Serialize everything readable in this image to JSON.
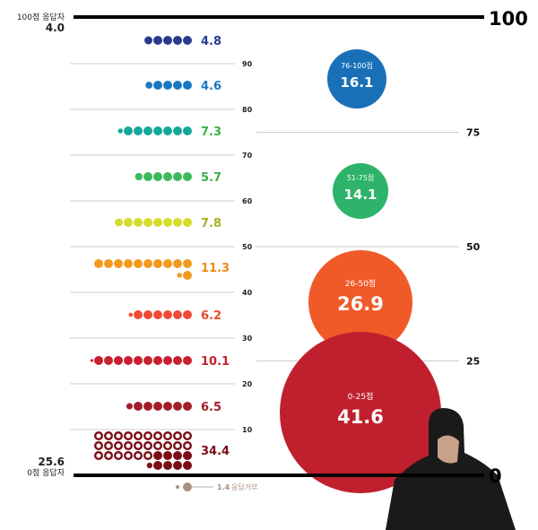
{
  "chart_data": {
    "type": "dot-bubble",
    "top_label": {
      "title": "100점 응답자",
      "value": "4.0"
    },
    "bottom_label": {
      "title": "0점 응답자",
      "value": "25.6"
    },
    "refusal": {
      "value": "1.4",
      "label": "응답거부",
      "color": "#a89080"
    },
    "left_ticks": [
      90,
      80,
      70,
      60,
      50,
      40,
      30,
      20,
      10
    ],
    "right_ticks": [
      100,
      75,
      50,
      25,
      0
    ],
    "bins": [
      {
        "range": "90-100",
        "value": 4.8,
        "color": "#2a3a8f",
        "label_color": "#2a3a8f"
      },
      {
        "range": "80-90",
        "value": 4.6,
        "color": "#1a78c2",
        "label_color": "#1a78c2"
      },
      {
        "range": "70-80",
        "value": 7.3,
        "color": "#14a89a",
        "label_color": "#3cb04a"
      },
      {
        "range": "60-70",
        "value": 5.7,
        "color": "#3cb95a",
        "label_color": "#3cb04a"
      },
      {
        "range": "50-60",
        "value": 7.8,
        "color": "#d6dc2a",
        "label_color": "#a8b020"
      },
      {
        "range": "40-50",
        "value": 11.3,
        "color": "#f39a1e",
        "label_color": "#f08a10"
      },
      {
        "range": "30-40",
        "value": 6.2,
        "color": "#ee4a35",
        "label_color": "#e84a30"
      },
      {
        "range": "20-30",
        "value": 10.1,
        "color": "#c8202f",
        "label_color": "#c8202f"
      },
      {
        "range": "10-20",
        "value": 6.5,
        "color": "#a31d28",
        "label_color": "#a31d28"
      },
      {
        "range": "0-10",
        "value": 34.4,
        "color": "#7a0c14",
        "label_color": "#7a0c14"
      }
    ],
    "bubbles": [
      {
        "label": "76-100점",
        "value": 16.1,
        "color": "#1a70b8"
      },
      {
        "label": "51-75점",
        "value": 14.1,
        "color": "#2db36a"
      },
      {
        "label": "26-50점",
        "value": 26.9,
        "color": "#f05a28"
      },
      {
        "label": "0-25점",
        "value": 41.6,
        "color": "#c0202e"
      }
    ]
  }
}
